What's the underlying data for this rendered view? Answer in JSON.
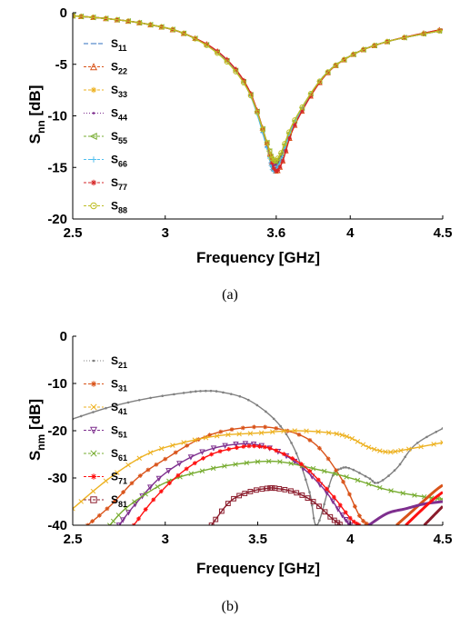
{
  "chart_data": [
    {
      "type": "line",
      "caption": "(a)",
      "xlabel": "Frequency [GHz]",
      "ylabel": {
        "base": "S",
        "sub": "nn",
        "rest": " [dB]"
      },
      "xlim": [
        2.5,
        4.5
      ],
      "ylim": [
        -20,
        0
      ],
      "xticks": [
        2.5,
        3,
        3.6,
        4,
        4.5
      ],
      "xtick_labels": [
        "2.5",
        "3",
        "3.6",
        "4",
        "4.5"
      ],
      "yticks": [
        0,
        -5,
        -10,
        -15,
        -20
      ],
      "ytick_labels": [
        "0",
        "-5",
        "-10",
        "-15",
        "-20"
      ],
      "grid": false,
      "legend_position": "left",
      "series": [
        {
          "name": "11",
          "color": "#2f6fbf",
          "marker": "dash",
          "x": [
            2.5,
            2.7,
            2.9,
            3.1,
            3.3,
            3.45,
            3.55,
            3.58,
            3.62,
            3.7,
            3.85,
            4.0,
            4.2,
            4.5
          ],
          "y": [
            -0.3,
            -0.6,
            -1.1,
            -2.0,
            -4.1,
            -7.6,
            -13.0,
            -15.0,
            -14.3,
            -10.5,
            -6.3,
            -4.2,
            -2.8,
            -1.7
          ]
        },
        {
          "name": "22",
          "color": "#d95319",
          "marker": "triangle",
          "x": [
            2.5,
            2.7,
            2.9,
            3.1,
            3.3,
            3.45,
            3.55,
            3.59,
            3.63,
            3.7,
            3.85,
            4.0,
            4.2,
            4.5
          ],
          "y": [
            -0.3,
            -0.6,
            -1.1,
            -2.0,
            -4.0,
            -7.4,
            -12.6,
            -15.2,
            -14.6,
            -10.9,
            -6.4,
            -4.2,
            -2.8,
            -1.6
          ]
        },
        {
          "name": "33",
          "color": "#edb120",
          "marker": "star",
          "x": [
            2.5,
            2.7,
            2.9,
            3.1,
            3.3,
            3.45,
            3.55,
            3.58,
            3.62,
            3.7,
            3.85,
            4.0,
            4.2,
            4.5
          ],
          "y": [
            -0.3,
            -0.6,
            -1.1,
            -2.0,
            -4.1,
            -7.5,
            -12.8,
            -14.6,
            -14.1,
            -10.6,
            -6.3,
            -4.2,
            -2.8,
            -1.7
          ]
        },
        {
          "name": "44",
          "color": "#7e2f8e",
          "marker": "dot",
          "x": [
            2.5,
            2.7,
            2.9,
            3.1,
            3.3,
            3.45,
            3.55,
            3.58,
            3.62,
            3.7,
            3.85,
            4.0,
            4.2,
            4.5
          ],
          "y": [
            -0.3,
            -0.6,
            -1.1,
            -2.0,
            -4.1,
            -7.5,
            -12.8,
            -14.7,
            -14.1,
            -10.6,
            -6.3,
            -4.2,
            -2.8,
            -1.7
          ]
        },
        {
          "name": "55",
          "color": "#77ac30",
          "marker": "triangle-left",
          "x": [
            2.5,
            2.7,
            2.9,
            3.1,
            3.3,
            3.45,
            3.55,
            3.58,
            3.62,
            3.7,
            3.85,
            4.0,
            4.2,
            4.5
          ],
          "y": [
            -0.3,
            -0.6,
            -1.1,
            -2.0,
            -4.1,
            -7.5,
            -12.6,
            -14.3,
            -13.9,
            -10.5,
            -6.3,
            -4.2,
            -2.8,
            -1.7
          ]
        },
        {
          "name": "66",
          "color": "#4dbeee",
          "marker": "plus",
          "x": [
            2.5,
            2.7,
            2.9,
            3.1,
            3.3,
            3.45,
            3.55,
            3.58,
            3.62,
            3.7,
            3.85,
            4.0,
            4.2,
            4.5
          ],
          "y": [
            -0.3,
            -0.6,
            -1.1,
            -2.0,
            -4.1,
            -7.6,
            -13.1,
            -15.3,
            -14.5,
            -10.6,
            -6.3,
            -4.2,
            -2.8,
            -1.7
          ]
        },
        {
          "name": "77",
          "color": "#d62728",
          "marker": "asterisk",
          "x": [
            2.5,
            2.7,
            2.9,
            3.1,
            3.3,
            3.45,
            3.55,
            3.59,
            3.63,
            3.7,
            3.85,
            4.0,
            4.2,
            4.5
          ],
          "y": [
            -0.3,
            -0.6,
            -1.1,
            -2.0,
            -4.0,
            -7.4,
            -12.7,
            -15.2,
            -14.6,
            -10.9,
            -6.4,
            -4.2,
            -2.8,
            -1.6
          ]
        },
        {
          "name": "88",
          "color": "#bdbd22",
          "marker": "circle",
          "x": [
            2.5,
            2.7,
            2.9,
            3.1,
            3.3,
            3.45,
            3.55,
            3.58,
            3.62,
            3.7,
            3.85,
            4.0,
            4.2,
            4.5
          ],
          "y": [
            -0.3,
            -0.6,
            -1.1,
            -2.0,
            -4.2,
            -7.6,
            -12.6,
            -14.2,
            -13.8,
            -10.4,
            -6.3,
            -4.2,
            -2.8,
            -1.7
          ]
        }
      ]
    },
    {
      "type": "line",
      "caption": "(b)",
      "xlabel": "Frequency [GHz]",
      "ylabel": {
        "base": "S",
        "sub": "nm",
        "rest": " [dB]"
      },
      "xlim": [
        2.5,
        4.5
      ],
      "ylim": [
        -40,
        0
      ],
      "xticks": [
        2.5,
        3,
        3.5,
        4,
        4.5
      ],
      "xtick_labels": [
        "2.5",
        "3",
        "3.5",
        "4",
        "4.5"
      ],
      "yticks": [
        0,
        -10,
        -20,
        -30,
        -40
      ],
      "ytick_labels": [
        "0",
        "-10",
        "-20",
        "-30",
        "-40"
      ],
      "grid": false,
      "legend_position": "left",
      "series": [
        {
          "name": "21",
          "color": "#808080",
          "marker": "dot",
          "x": [
            2.5,
            2.7,
            2.9,
            3.1,
            3.2,
            3.3,
            3.45,
            3.6,
            3.7,
            3.78,
            3.82,
            3.9,
            3.95,
            4.0,
            4.1,
            4.15,
            4.25,
            4.35,
            4.5
          ],
          "y": [
            -17.5,
            -15.0,
            -13.2,
            -12.0,
            -11.6,
            -11.8,
            -13.5,
            -18.0,
            -24.0,
            -33.0,
            -40.0,
            -30.0,
            -28.0,
            -28.0,
            -30.0,
            -31.0,
            -28.0,
            -23.0,
            -19.5
          ]
        },
        {
          "name": "31",
          "color": "#d95319",
          "marker": "asterisk",
          "x": [
            2.58,
            2.7,
            2.85,
            3.0,
            3.2,
            3.4,
            3.6,
            3.8,
            3.95,
            4.05,
            4.1
          ],
          "y": [
            -40.0,
            -36.0,
            -30.0,
            -26.0,
            -21.5,
            -19.5,
            -19.5,
            -22.5,
            -30.0,
            -38.0,
            -40.0
          ]
        },
        {
          "name": "41",
          "color": "#edb120",
          "marker": "x",
          "x": [
            2.5,
            2.7,
            2.9,
            3.1,
            3.3,
            3.5,
            3.7,
            3.9,
            4.0,
            4.1,
            4.2,
            4.3,
            4.5
          ],
          "y": [
            -36.5,
            -30.0,
            -25.0,
            -22.5,
            -21.0,
            -20.5,
            -20.0,
            -20.5,
            -21.5,
            -23.5,
            -24.5,
            -24.0,
            -22.5
          ]
        },
        {
          "name": "51",
          "color": "#7e2f8e",
          "marker": "triangle-down",
          "x": [
            2.75,
            2.85,
            3.0,
            3.2,
            3.4,
            3.55,
            3.7,
            3.85,
            3.95,
            4.0
          ],
          "y": [
            -40.0,
            -35.0,
            -29.0,
            -24.5,
            -22.8,
            -23.5,
            -26.5,
            -32.0,
            -37.5,
            -40.0
          ]
        },
        {
          "name": "61",
          "color": "#77ac30",
          "marker": "x",
          "x": [
            2.7,
            2.8,
            3.0,
            3.2,
            3.4,
            3.6,
            3.8,
            4.0,
            4.2,
            4.4,
            4.5
          ],
          "y": [
            -40.0,
            -36.0,
            -31.0,
            -28.5,
            -27.0,
            -26.5,
            -28.0,
            -30.0,
            -32.5,
            -34.0,
            -34.5
          ]
        },
        {
          "name": "71",
          "color": "#ff1010",
          "marker": "star",
          "x": [
            2.83,
            2.95,
            3.1,
            3.25,
            3.4,
            3.5,
            3.6,
            3.75,
            3.9,
            4.0,
            4.05
          ],
          "y": [
            -40.0,
            -34.0,
            -28.5,
            -25.0,
            -23.5,
            -23.3,
            -24.2,
            -27.5,
            -33.5,
            -38.5,
            -40.0
          ]
        },
        {
          "name": "81",
          "color": "#8b1c2c",
          "marker": "square",
          "x": [
            3.25,
            3.35,
            3.45,
            3.55,
            3.6,
            3.7,
            3.8,
            3.9,
            3.95
          ],
          "y": [
            -40.0,
            -35.0,
            -33.0,
            -32.2,
            -32.2,
            -33.0,
            -35.0,
            -38.5,
            -40.0
          ]
        }
      ],
      "right_edge_series": [
        {
          "color": "#d95319",
          "x": [
            4.25,
            4.35,
            4.45,
            4.5
          ],
          "y": [
            -40.0,
            -36.5,
            -33.0,
            -31.5
          ]
        },
        {
          "color": "#7e2f8e",
          "x": [
            4.1,
            4.2,
            4.3,
            4.4,
            4.5
          ],
          "y": [
            -40.0,
            -37.5,
            -36.5,
            -35.5,
            -35.0
          ]
        },
        {
          "color": "#ff1010",
          "x": [
            4.3,
            4.38,
            4.45,
            4.5
          ],
          "y": [
            -40.0,
            -37.0,
            -34.5,
            -33.0
          ]
        },
        {
          "color": "#8b1c2c",
          "x": [
            4.4,
            4.45,
            4.5
          ],
          "y": [
            -40.0,
            -38.0,
            -36.0
          ]
        }
      ]
    }
  ]
}
